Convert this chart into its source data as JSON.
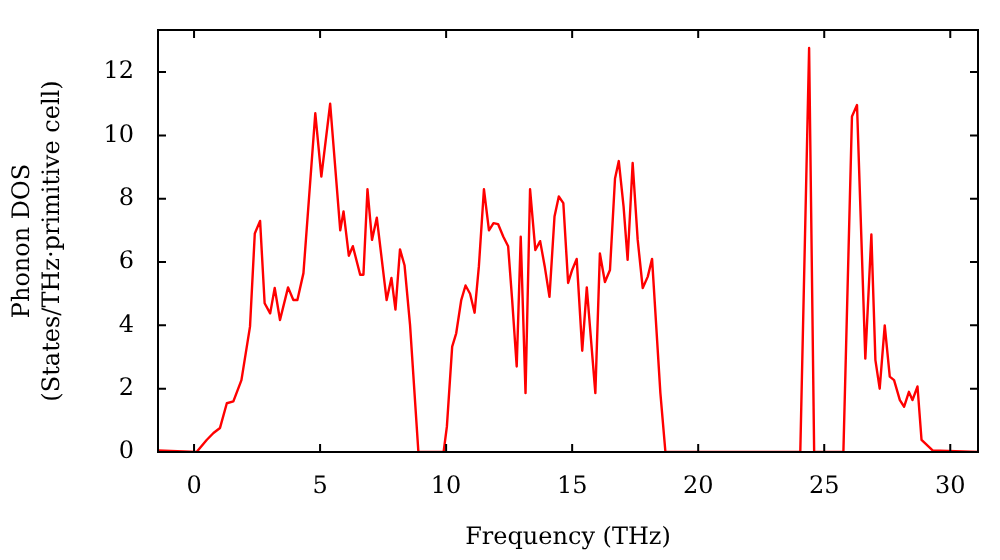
{
  "chart_data": {
    "type": "line",
    "xlabel": "Frequency (THz)",
    "ylabel": "Phonon DOS\n(States/THz·primitive cell)",
    "x": [
      -1.43,
      0.1,
      0.5,
      0.77,
      1.03,
      1.3,
      1.56,
      1.88,
      2.22,
      2.41,
      2.62,
      2.8,
      3.02,
      3.2,
      3.41,
      3.73,
      3.94,
      4.1,
      4.34,
      4.81,
      5.05,
      5.4,
      5.8,
      5.93,
      6.14,
      6.3,
      6.59,
      6.72,
      6.88,
      7.06,
      7.25,
      7.64,
      7.83,
      7.99,
      8.17,
      8.35,
      8.57,
      8.9,
      9.9,
      10.03,
      10.24,
      10.4,
      10.6,
      10.77,
      10.95,
      11.13,
      11.3,
      11.5,
      11.7,
      11.88,
      12.06,
      12.27,
      12.46,
      12.62,
      12.8,
      12.96,
      13.15,
      13.33,
      13.54,
      13.73,
      13.91,
      14.1,
      14.3,
      14.47,
      14.65,
      14.84,
      15.0,
      15.18,
      15.4,
      15.58,
      15.92,
      16.1,
      16.3,
      16.5,
      16.7,
      16.85,
      17.04,
      17.2,
      17.4,
      17.6,
      17.8,
      18.0,
      18.17,
      18.5,
      18.7,
      24.05,
      24.4,
      24.6,
      25.76,
      26.1,
      26.3,
      26.63,
      26.87,
      27.03,
      27.2,
      27.4,
      27.6,
      27.77,
      28.0,
      28.17,
      28.36,
      28.5,
      28.7,
      28.86,
      29.3,
      31.1
    ],
    "series": [
      {
        "color": "#ff0000",
        "values": [
          0.05,
          0,
          0.38,
          0.6,
          0.76,
          1.54,
          1.6,
          2.27,
          3.96,
          6.9,
          7.3,
          4.7,
          4.38,
          5.18,
          4.17,
          5.2,
          4.8,
          4.8,
          5.65,
          10.7,
          8.7,
          11.0,
          7.0,
          7.6,
          6.2,
          6.5,
          5.6,
          5.6,
          8.3,
          6.7,
          7.4,
          4.8,
          5.5,
          4.5,
          6.4,
          5.9,
          4.0,
          0,
          0,
          0.8,
          3.33,
          3.75,
          4.8,
          5.26,
          5.0,
          4.4,
          5.87,
          8.3,
          7.0,
          7.23,
          7.2,
          6.8,
          6.5,
          4.8,
          2.7,
          6.8,
          1.86,
          8.3,
          6.38,
          6.66,
          5.87,
          4.9,
          7.44,
          8.07,
          7.86,
          5.34,
          5.75,
          6.1,
          3.2,
          5.2,
          1.86,
          6.27,
          5.37,
          5.75,
          8.64,
          9.19,
          7.75,
          6.07,
          9.13,
          6.7,
          5.18,
          5.54,
          6.1,
          1.86,
          0,
          0,
          12.76,
          0,
          0,
          10.6,
          10.96,
          2.95,
          6.87,
          2.9,
          2.0,
          4.0,
          2.38,
          2.27,
          1.64,
          1.43,
          1.9,
          1.64,
          2.07,
          0.38,
          0.05,
          0
        ]
      }
    ],
    "xlim": [
      -1.43,
      31.1
    ],
    "ylim": [
      0,
      13.33
    ],
    "xticks": [
      0,
      5,
      10,
      15,
      20,
      25,
      30
    ],
    "yticks": [
      0,
      2,
      4,
      6,
      8,
      10,
      12
    ]
  }
}
